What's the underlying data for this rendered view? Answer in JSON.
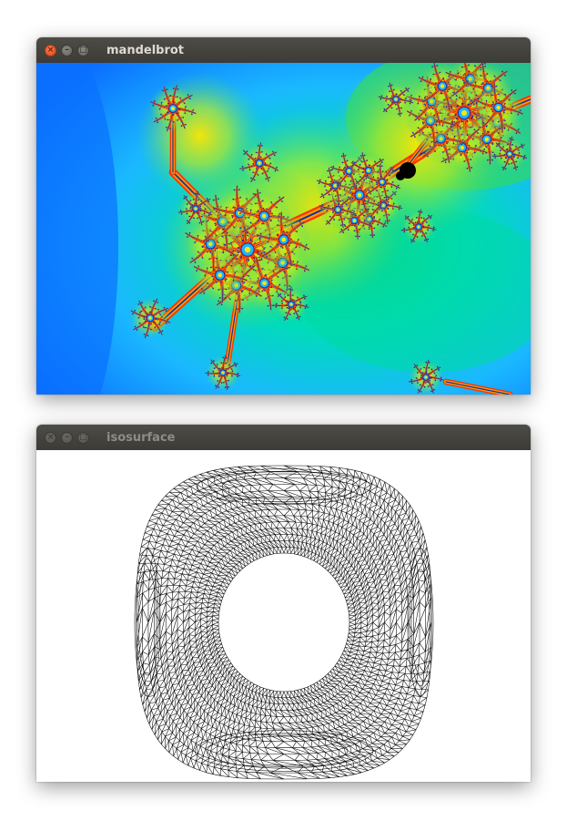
{
  "windows": [
    {
      "title": "mandelbrot",
      "controls": {
        "close_icon": "close-icon",
        "minimize_icon": "minimize-icon",
        "maximize_icon": "maximize-icon"
      },
      "content_icon": "mandelbrot-fractal-render"
    },
    {
      "title": "isosurface",
      "controls": {
        "close_icon": "close-icon",
        "minimize_icon": "minimize-icon",
        "maximize_icon": "maximize-icon"
      },
      "content_icon": "wireframe-isosurface-mesh"
    }
  ],
  "colors": {
    "titlebar": "#3c3b37",
    "close_button": "#e0461b",
    "fractal_palette": [
      "#0a6cff",
      "#1eb4ff",
      "#00e0c8",
      "#20d060",
      "#b4e61e",
      "#ffe600",
      "#ff9a00",
      "#ff3200",
      "#1030a0",
      "#000000"
    ],
    "mesh_stroke": "#000000"
  }
}
